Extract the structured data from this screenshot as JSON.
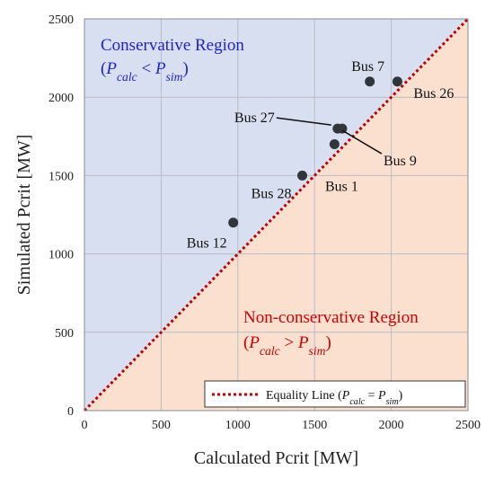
{
  "chart_data": {
    "type": "scatter",
    "xlabel": "Calculated Pcrit [MW]",
    "ylabel": "Simulated Pcrit [MW]",
    "xlim": [
      0,
      2500
    ],
    "ylim": [
      0,
      2500
    ],
    "xticks": [
      "0",
      "500",
      "1000",
      "1500",
      "2000",
      "2500"
    ],
    "yticks": [
      "0",
      "500",
      "1000",
      "1500",
      "2000",
      "2500"
    ],
    "tick_values": [
      0,
      500,
      1000,
      1500,
      2000,
      2500
    ],
    "grid": true,
    "points": [
      {
        "label": "Bus 7",
        "x": 1860,
        "y": 2100
      },
      {
        "label": "Bus 26",
        "x": 2040,
        "y": 2100
      },
      {
        "label": "Bus 27",
        "x": 1650,
        "y": 1800
      },
      {
        "label": "Bus 9",
        "x": 1680,
        "y": 1800
      },
      {
        "label": "Bus 1",
        "x": 1630,
        "y": 1700
      },
      {
        "label": "Bus 28",
        "x": 1420,
        "y": 1500
      },
      {
        "label": "Bus 12",
        "x": 970,
        "y": 1200
      }
    ],
    "regions": {
      "conservative": {
        "title": "Conservative Region",
        "math": {
          "lhs": "P",
          "lhs_sub": "calc",
          "op": "<",
          "rhs": "P",
          "rhs_sub": "sim"
        },
        "color": "#d7dff0"
      },
      "non_conservative": {
        "title": "Non-conservative Region",
        "math": {
          "lhs": "P",
          "lhs_sub": "calc",
          "op": ">",
          "rhs": "P",
          "rhs_sub": "sim"
        },
        "color": "#fbe0d0"
      }
    },
    "equality_line": {
      "legend_prefix": "Equality Line",
      "math": {
        "lhs": "P",
        "lhs_sub": "calc",
        "op": "=",
        "rhs": "P",
        "rhs_sub": "sim"
      },
      "color": "#c00000"
    },
    "colors": {
      "point": "#33353d",
      "conservative_text": "#2222cc",
      "non_conservative_text": "#cc0000",
      "grid": "#b9bdc6"
    }
  }
}
